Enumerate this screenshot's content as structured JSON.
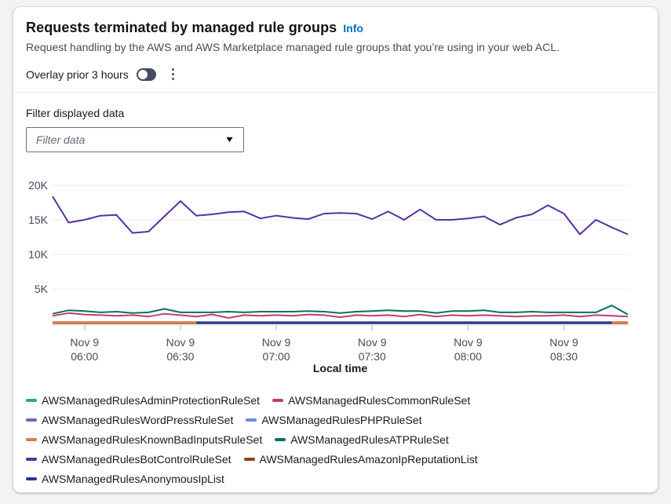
{
  "panel": {
    "title": "Requests terminated by managed rule groups",
    "info_link": "Info",
    "description": "Request handling by the AWS and AWS Marketplace managed rule groups that you’re using in your web ACL.",
    "overlay_label": "Overlay prior 3 hours",
    "overlay_state": "off"
  },
  "filter": {
    "label": "Filter displayed data",
    "placeholder": "Filter data",
    "caret": "▼"
  },
  "chart_data": {
    "type": "line",
    "x_axis_label": "Local time",
    "x_start": "Nov 9 05:50",
    "x_step_minutes": 5,
    "point_count": 37,
    "ylim": [
      0,
      22700
    ],
    "grid": "horizontal",
    "legend_position": "bottom",
    "y_ticks": [
      {
        "label": "20K",
        "value": 20000
      },
      {
        "label": "15K",
        "value": 15000
      },
      {
        "label": "10K",
        "value": 10000
      },
      {
        "label": "5K",
        "value": 5000
      }
    ],
    "x_ticks": [
      {
        "date": "Nov 9",
        "time": "06:00",
        "index": 2
      },
      {
        "date": "Nov 9",
        "time": "06:30",
        "index": 8
      },
      {
        "date": "Nov 9",
        "time": "07:00",
        "index": 14
      },
      {
        "date": "Nov 9",
        "time": "07:30",
        "index": 20
      },
      {
        "date": "Nov 9",
        "time": "08:00",
        "index": 26
      },
      {
        "date": "Nov 9",
        "time": "08:30",
        "index": 32
      }
    ],
    "series": [
      {
        "name": "AWSManagedRulesAdminProtectionRuleSet",
        "color": "#2ea597",
        "stroke_width": 2,
        "values": [
          60,
          60,
          60,
          60,
          60,
          60,
          60,
          60,
          60,
          60,
          60,
          60,
          60,
          60,
          60,
          60,
          60,
          60,
          60,
          60,
          60,
          60,
          60,
          60,
          60,
          60,
          60,
          60,
          60,
          60,
          60,
          60,
          60,
          60,
          60,
          60,
          60
        ]
      },
      {
        "name": "AWSManagedRulesWordPressRuleSet",
        "color": "#8456ce",
        "stroke_width": 2,
        "values": [
          40,
          40,
          40,
          40,
          40,
          40,
          40,
          40,
          40,
          40,
          40,
          40,
          40,
          40,
          40,
          40,
          40,
          40,
          40,
          40,
          40,
          40,
          40,
          40,
          40,
          40,
          40,
          40,
          40,
          40,
          40,
          40,
          40,
          40,
          40,
          40,
          40
        ]
      },
      {
        "name": "AWSManagedRulesPHPRuleSet",
        "color": "#688ae8",
        "stroke_width": 2,
        "values": [
          30,
          30,
          30,
          30,
          30,
          30,
          30,
          30,
          30,
          30,
          30,
          30,
          30,
          30,
          30,
          30,
          30,
          30,
          30,
          30,
          30,
          30,
          30,
          30,
          30,
          30,
          30,
          30,
          30,
          30,
          30,
          30,
          30,
          30,
          30,
          30,
          30
        ]
      },
      {
        "name": "AWSManagedRulesAmazonIpReputationList",
        "color": "#8a4119",
        "stroke_width": 2,
        "values": [
          50,
          50,
          50,
          50,
          50,
          50,
          50,
          50,
          50,
          50,
          50,
          50,
          50,
          50,
          50,
          50,
          50,
          50,
          50,
          50,
          50,
          50,
          50,
          50,
          50,
          50,
          50,
          50,
          50,
          50,
          50,
          50,
          50,
          50,
          50,
          50,
          50
        ]
      },
      {
        "name": "AWSManagedRulesKnownBadInputsRuleSet",
        "color": "#e07941",
        "stroke_width": 3,
        "values": [
          150,
          150,
          150,
          150,
          150,
          150,
          150,
          150,
          150,
          150,
          150,
          150,
          150,
          150,
          150,
          150,
          150,
          150,
          150,
          150,
          150,
          150,
          150,
          150,
          150,
          150,
          150,
          150,
          150,
          150,
          150,
          150,
          150,
          150,
          150,
          150,
          150
        ]
      },
      {
        "name": "AWSManagedRulesAnonymousIpList",
        "color": "#23389b",
        "stroke_width": 3,
        "values": [
          null,
          null,
          null,
          null,
          null,
          null,
          null,
          null,
          null,
          100,
          100,
          100,
          100,
          100,
          100,
          100,
          100,
          100,
          100,
          100,
          100,
          100,
          100,
          100,
          100,
          100,
          100,
          100,
          100,
          100,
          100,
          100,
          100,
          100,
          100,
          100,
          null
        ]
      },
      {
        "name": "AWSManagedRulesCommonRuleSet",
        "color": "#c33d69",
        "stroke_width": 2,
        "values": [
          1100,
          1500,
          1300,
          1200,
          1100,
          1200,
          1000,
          1400,
          1200,
          1000,
          1300,
          800,
          1200,
          1100,
          1200,
          1100,
          1300,
          1200,
          900,
          1200,
          1100,
          1200,
          1000,
          1300,
          1000,
          1200,
          1100,
          1200,
          1100,
          1000,
          1100,
          1100,
          1200,
          1000,
          1200,
          1100,
          1000
        ]
      },
      {
        "name": "AWSManagedRulesATPRuleSet",
        "color": "#096f64",
        "stroke_width": 2,
        "values": [
          1400,
          1900,
          1800,
          1600,
          1700,
          1500,
          1600,
          2100,
          1600,
          1600,
          1600,
          1700,
          1600,
          1700,
          1700,
          1700,
          1800,
          1700,
          1500,
          1700,
          1800,
          1900,
          1800,
          1800,
          1500,
          1800,
          1800,
          1900,
          1600,
          1600,
          1700,
          1600,
          1600,
          1600,
          1600,
          2600,
          1300
        ]
      },
      {
        "name": "AWSManagedRulesBotControlRuleSet",
        "color": "#59309f",
        "stroke_width": 2,
        "values": [
          18400,
          14600,
          15000,
          15600,
          15700,
          13100,
          13300,
          15500,
          17700,
          15600,
          15800,
          16100,
          16200,
          15200,
          15600,
          15300,
          15100,
          15900,
          16000,
          15900,
          15100,
          16200,
          15000,
          16500,
          15000,
          15000,
          15200,
          15500,
          14300,
          15300,
          15800,
          17100,
          15900,
          12900,
          15000,
          13900,
          12900
        ]
      }
    ],
    "legend_order": [
      0,
      6,
      1,
      2,
      4,
      7,
      8,
      3,
      5
    ]
  }
}
